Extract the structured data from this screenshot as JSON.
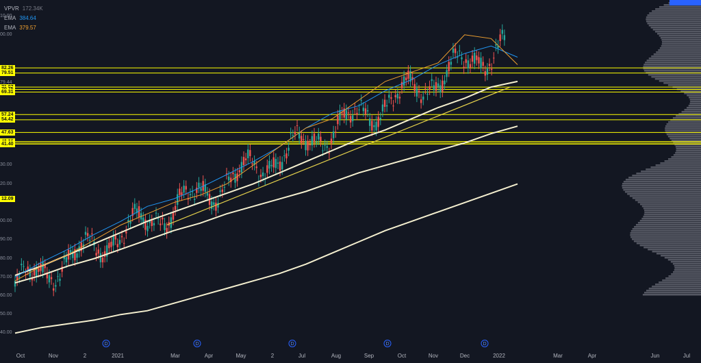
{
  "legend": [
    {
      "name": "VPVR",
      "value": "172.34K",
      "color": "#787b86"
    },
    {
      "name": "EMA",
      "value": "384.64",
      "color": "#2196f3"
    },
    {
      "name": "EMA",
      "value": "379.57",
      "color": "#f0a030"
    }
  ],
  "price_tags": [
    {
      "text": "82.26",
      "price": 482.26
    },
    {
      "text": "79.51",
      "price": 479.51
    },
    {
      "text": "71.97",
      "price": 471.97
    },
    {
      "text": "70.75",
      "price": 470.75
    },
    {
      "text": "69.31",
      "price": 469.31
    },
    {
      "text": "57.24",
      "price": 457.24
    },
    {
      "text": "54.42",
      "price": 454.42
    },
    {
      "text": "47.63",
      "price": 447.63
    },
    {
      "text": "42.80",
      "price": 442.8
    },
    {
      "text": "42.01",
      "price": 442.01
    },
    {
      "text": "41.40",
      "price": 441.4
    },
    {
      "text": "12.09",
      "price": 412.09
    }
  ],
  "price_plain": [
    {
      "text": "10.00",
      "price": 510
    },
    {
      "text": "00.00",
      "price": 500
    },
    {
      "text": "79.44",
      "price": 474.2
    },
    {
      "text": "30.00",
      "price": 430
    },
    {
      "text": "20.00",
      "price": 420
    },
    {
      "text": "00.00",
      "price": 400
    },
    {
      "text": "90.00",
      "price": 390
    },
    {
      "text": "80.00",
      "price": 380
    },
    {
      "text": "70.00",
      "price": 370
    },
    {
      "text": "60.00",
      "price": 360
    },
    {
      "text": "50.00",
      "price": 350
    },
    {
      "text": "40.00",
      "price": 340
    }
  ],
  "x_ticks": [
    "Oct",
    "Nov",
    "2",
    "2021",
    "Mar",
    "Apr",
    "May",
    "2",
    "Jul",
    "Aug",
    "Sep",
    "Oct",
    "Nov",
    "Dec",
    "2022",
    "Mar",
    "Apr",
    "Jun",
    "Jul"
  ],
  "dividend_marks": [
    "D",
    "D",
    "D",
    "D",
    "D"
  ],
  "chart_data": {
    "type": "line",
    "title": "",
    "series": [
      {
        "values": [
          340,
          343,
          345,
          347,
          350,
          352,
          356,
          360,
          364,
          368,
          372,
          377,
          383,
          389,
          395,
          400,
          405,
          410,
          415,
          420
        ]
      },
      {
        "values": [
          367,
          371,
          376,
          380,
          385,
          390,
          395,
          399,
          404,
          408,
          412,
          416,
          421,
          426,
          430,
          434,
          438,
          442,
          447,
          451
        ]
      },
      {
        "values": [
          371,
          376,
          382,
          388,
          394,
          400,
          405,
          410,
          415,
          420,
          426,
          432,
          438,
          444,
          449,
          455,
          461,
          466,
          472,
          475
        ]
      },
      {
        "values": [
          370,
          378,
          385,
          393,
          400,
          408,
          412,
          418,
          425,
          432,
          440,
          450,
          458,
          462,
          470,
          476,
          484,
          490,
          494,
          488
        ]
      },
      {
        "values": [
          368,
          376,
          382,
          390,
          398,
          404,
          410,
          414,
          420,
          430,
          440,
          450,
          455,
          465,
          475,
          480,
          485,
          500,
          498,
          484
        ]
      }
    ],
    "trendline": {
      "x": [
        0.3,
        0.98
      ],
      "y": [
        398,
        472
      ]
    },
    "ylim": [
      335,
      515
    ]
  }
}
